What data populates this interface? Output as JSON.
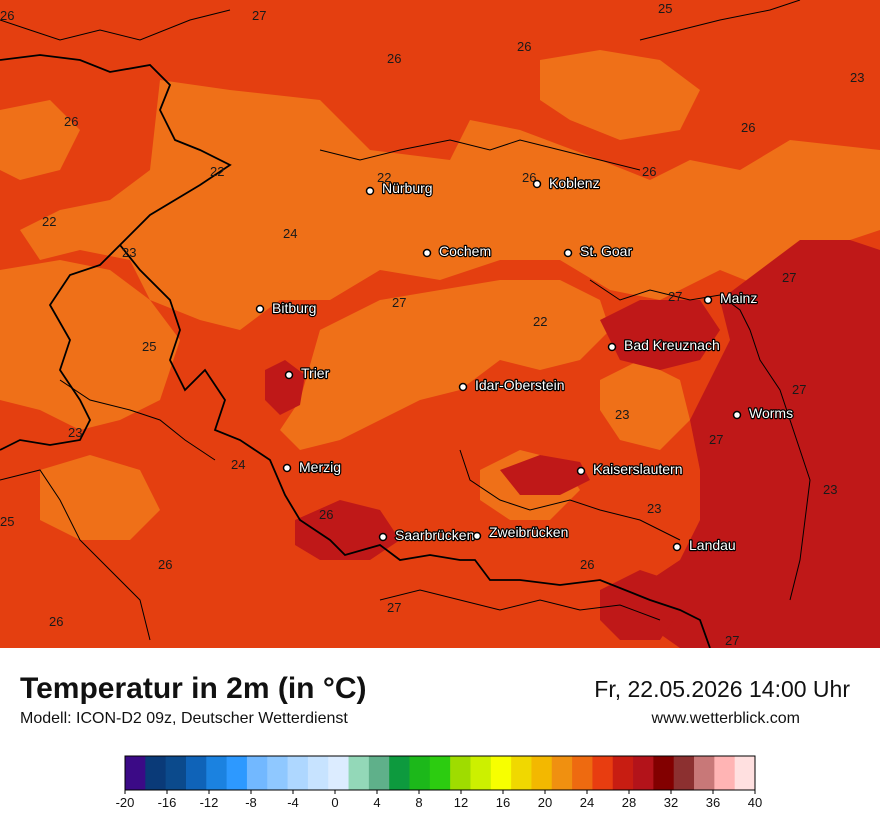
{
  "header": {
    "title": "Temperatur in 2m (in °C)",
    "model": "Modell: ICON-D2 09z, Deutscher Wetterdienst",
    "datetime": "Fr, 22.05.2026 14:00 Uhr",
    "website": "www.wetterblick.com"
  },
  "map": {
    "cities": [
      {
        "name": "Nürburg"
      },
      {
        "name": "Koblenz"
      },
      {
        "name": "Cochem"
      },
      {
        "name": "St. Goar"
      },
      {
        "name": "Mainz"
      },
      {
        "name": "Bitburg"
      },
      {
        "name": "Bad Kreuznach"
      },
      {
        "name": "Trier"
      },
      {
        "name": "Idar-Oberstein"
      },
      {
        "name": "Worms"
      },
      {
        "name": "Merzig"
      },
      {
        "name": "Kaiserslautern"
      },
      {
        "name": "Saarbrücken"
      },
      {
        "name": "Zweibrücken"
      },
      {
        "name": "Landau"
      }
    ],
    "value_labels": [
      "26",
      "27",
      "25",
      "26",
      "26",
      "23",
      "26",
      "26",
      "22",
      "22",
      "26",
      "26",
      "22",
      "23",
      "24",
      "27",
      "27",
      "22",
      "25",
      "27",
      "23",
      "23",
      "27",
      "24",
      "27",
      "23",
      "26",
      "23",
      "25",
      "26",
      "26",
      "27",
      "26",
      "27"
    ]
  },
  "legend": {
    "tick_labels": [
      "-20",
      "-16",
      "-12",
      "-8",
      "-4",
      "0",
      "4",
      "8",
      "12",
      "16",
      "20",
      "24",
      "28",
      "32",
      "36",
      "40"
    ],
    "colors": [
      "#3b0a86",
      "#0a3a78",
      "#0b4a8c",
      "#0f63b8",
      "#1b82e0",
      "#2d99ff",
      "#72b8ff",
      "#8fc8ff",
      "#aed7ff",
      "#c7e3ff",
      "#dcecff",
      "#93d8b8",
      "#5fb08a",
      "#0d9a3e",
      "#1cb81a",
      "#2ccc10",
      "#9fdc00",
      "#ccf000",
      "#f7ff00",
      "#f0d800",
      "#f3b800",
      "#f09010",
      "#ee6a10",
      "#e83d10",
      "#c81d12",
      "#b3131a",
      "#820000",
      "#8c3030",
      "#c87878",
      "#ffb4b4",
      "#ffe0e0"
    ]
  }
}
